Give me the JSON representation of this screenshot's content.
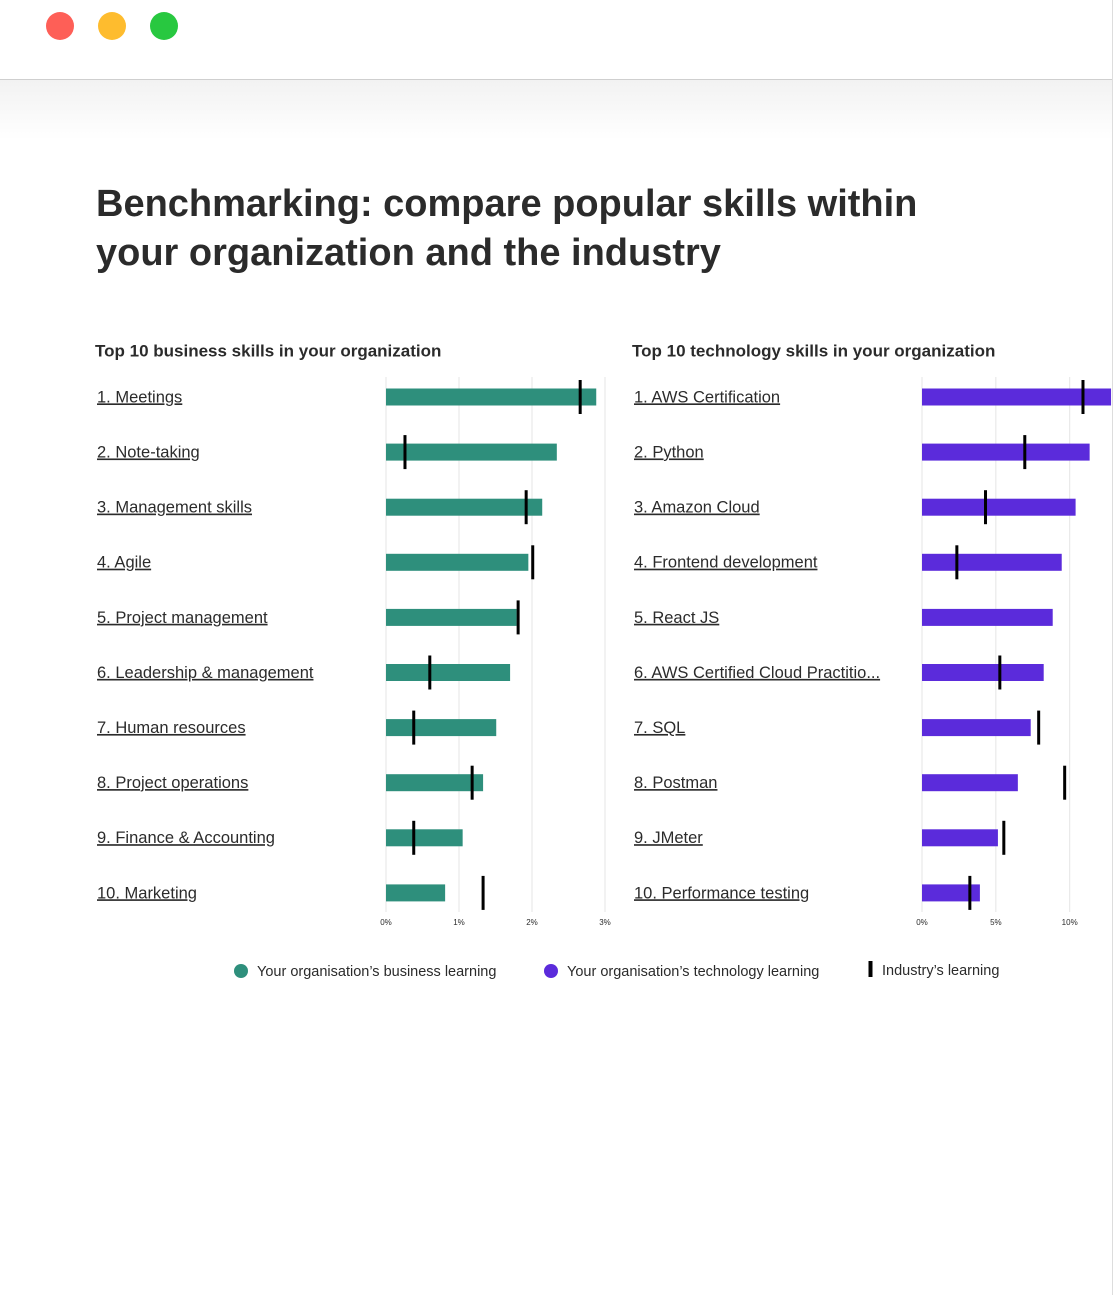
{
  "heading": [
    "Benchmarking: compare popular skills within",
    "your organization and the industry"
  ],
  "chart_data": [
    {
      "type": "bar",
      "orientation": "horizontal",
      "title": "Top 10 business skills in your organization",
      "categories": [
        "1. Meetings",
        "2. Note-taking",
        "3. Management skills",
        "4. Agile",
        "5. Project management",
        "6. Leadership & management",
        "7. Human resources",
        "8. Project operations",
        "9. Finance & Accounting",
        "10. Marketing"
      ],
      "series": [
        {
          "name": "Your organisation’s business learning",
          "color": "#2e8f7c",
          "values": [
            2.88,
            2.34,
            2.14,
            1.95,
            1.79,
            1.7,
            1.51,
            1.33,
            1.05,
            0.81
          ]
        },
        {
          "name": "Industry’s learning",
          "color": "#000000",
          "values": [
            2.66,
            0.26,
            1.92,
            2.01,
            1.81,
            0.6,
            0.38,
            1.18,
            0.38,
            1.33
          ]
        }
      ],
      "xlim": [
        0,
        3
      ],
      "xticks": [
        {
          "value": 0,
          "label": "0%"
        },
        {
          "value": 1,
          "label": "1%"
        },
        {
          "value": 2,
          "label": "2%"
        },
        {
          "value": 3,
          "label": "3%"
        }
      ],
      "grid": true
    },
    {
      "type": "bar",
      "orientation": "horizontal",
      "title": "Top 10 technology skills in your organization",
      "categories": [
        "1. AWS Certification",
        "2. Python",
        "3. Amazon Cloud",
        "4. Frontend development",
        "5.  React JS",
        "6. AWS Certified Cloud Practitio...",
        "7. SQL",
        "8. Postman",
        "9. JMeter",
        "10. Performance testing"
      ],
      "series": [
        {
          "name": "Your organisation’s technology learning",
          "color": "#5b2bdb",
          "values": [
            12.8,
            11.35,
            10.4,
            9.46,
            8.85,
            8.24,
            7.36,
            6.49,
            5.14,
            3.92
          ]
        },
        {
          "color": "#000000",
          "values": [
            10.9,
            6.96,
            4.3,
            2.36,
            null,
            5.27,
            7.9,
            9.66,
            5.54,
            3.24
          ]
        }
      ],
      "xlim": [
        0,
        13
      ],
      "xticks": [
        {
          "value": 0,
          "label": "0%"
        },
        {
          "value": 5,
          "label": "5%"
        },
        {
          "value": 10,
          "label": "10%"
        }
      ],
      "grid": true
    }
  ]
}
